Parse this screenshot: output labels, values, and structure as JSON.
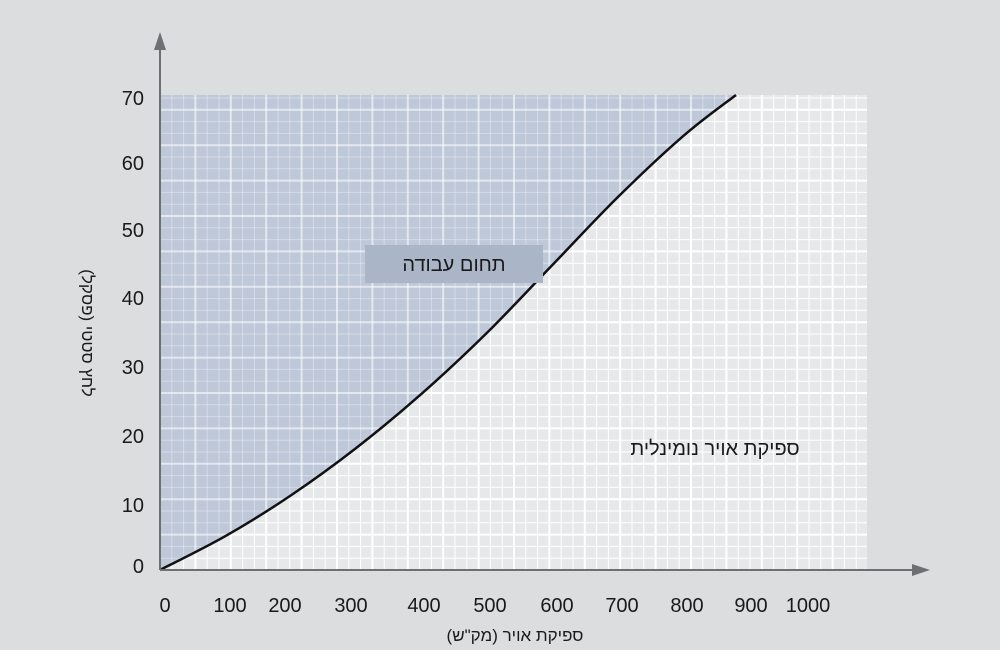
{
  "chart_data": {
    "type": "area",
    "title": "",
    "xlabel": "ספיקת אויר (מק\"ש)",
    "ylabel": "לחץ סטטי (פסקל)",
    "xlim": [
      0,
      1000
    ],
    "ylim": [
      0,
      70
    ],
    "x_ticks": [
      "0",
      "100",
      "200",
      "300",
      "400",
      "500",
      "600",
      "700",
      "800",
      "900",
      "1000"
    ],
    "y_ticks": [
      "0",
      "10",
      "20",
      "30",
      "40",
      "50",
      "60",
      "70"
    ],
    "grid": true,
    "series": [
      {
        "x": [
          0,
          100,
          200,
          300,
          400,
          500,
          600,
          700,
          800,
          880
        ],
        "y": [
          0,
          5,
          11,
          18,
          26,
          35,
          45,
          55,
          64,
          70
        ]
      }
    ],
    "annotations": {
      "working_range": "תחום עבודה",
      "nominal_flow": "ספיקת אויר נומינלית"
    },
    "colors": {
      "background": "#dcdddf",
      "plot_bg": "#e7e8ea",
      "grid": "#ffffff",
      "fill": "#b7c2d6",
      "curve": "#111111",
      "axis": "#6e6f73",
      "label_box": "#aab5c8"
    }
  }
}
